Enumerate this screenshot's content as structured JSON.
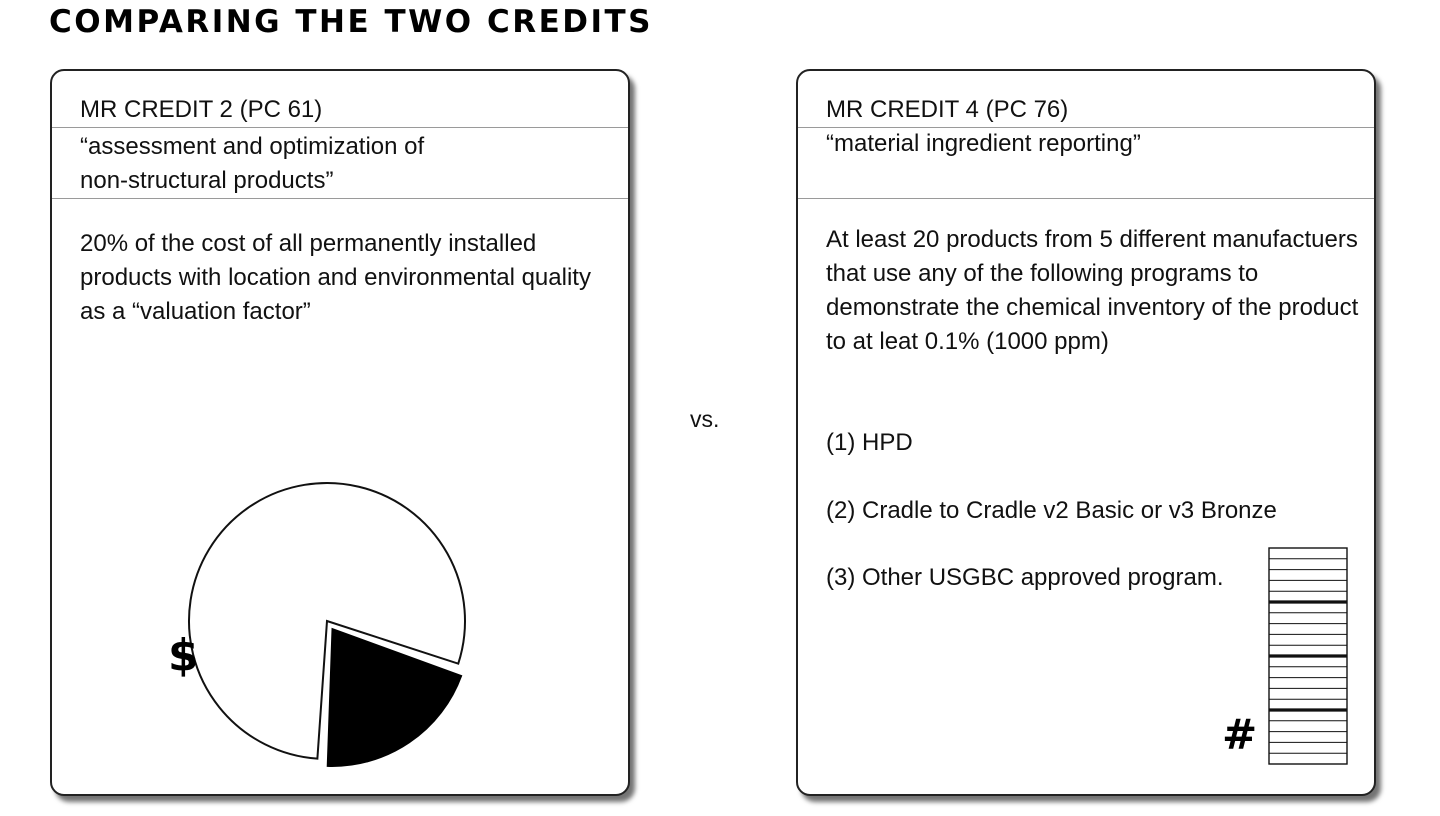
{
  "title": "COMPARING THE TWO CREDITS",
  "vs": "vs.",
  "left_card": {
    "header": "MR CREDIT 2 (PC 61)",
    "subtitle": "“assessment and optimization of\nnon-structural products”",
    "body": "20% of the cost of all permanently installed products with location and environmental quality as a “valuation factor”",
    "icon": "$",
    "pie": {
      "highlighted_fraction": 0.2
    }
  },
  "right_card": {
    "header": "MR CREDIT 4 (PC 76)",
    "subtitle": "“material ingredient reporting”",
    "body": "At least 20 products from 5 different manufactuers that use any of the following programs to demonstrate the chemical inventory of the product to at leat 0.1% (1000 ppm)",
    "programs": [
      "(1) HPD",
      "(2) Cradle to Cradle v2 Basic or v3 Bronze",
      "(3) Other USGBC approved program."
    ],
    "icon": "#",
    "product_stack": {
      "total": 20,
      "group_size": 5
    }
  }
}
